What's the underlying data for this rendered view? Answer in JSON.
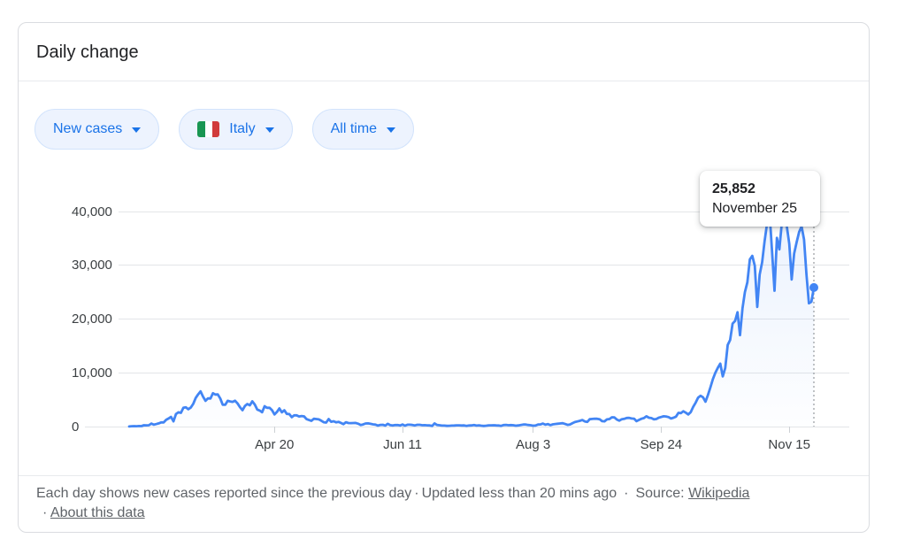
{
  "card": {
    "title": "Daily change"
  },
  "filters": {
    "metric": {
      "label": "New cases",
      "icon": "chevron-down"
    },
    "region": {
      "label": "Italy",
      "flag": "italy",
      "icon": "chevron-down"
    },
    "range": {
      "label": "All time",
      "icon": "chevron-down"
    }
  },
  "tooltip": {
    "value": "25,852",
    "date": "November 25"
  },
  "footer": {
    "description": "Each day shows new cases reported since the previous day",
    "dot": "·",
    "updated": "Updated less than 20 mins ago",
    "source_label": "Source:",
    "source_link": "Wikipedia",
    "about_link": "About this data"
  },
  "colors": {
    "line": "#4285f4",
    "accent": "#1a73e8",
    "chip_bg": "#edf3fe",
    "chip_border": "#d2e3fc",
    "grid": "#e3e5e8",
    "text_primary": "#202124",
    "text_secondary": "#5f6368"
  },
  "chart_data": {
    "type": "line",
    "title": "Daily change",
    "series_name": "New cases",
    "region": "Italy",
    "time_range": "All time",
    "start_date": "2020-02-21",
    "end_date": "2020-11-25",
    "grid": true,
    "ylim": [
      0,
      40000
    ],
    "y_ticks": [
      {
        "label": "0",
        "value": 0
      },
      {
        "label": "10,000",
        "value": 10000
      },
      {
        "label": "20,000",
        "value": 20000
      },
      {
        "label": "30,000",
        "value": 30000
      },
      {
        "label": "40,000",
        "value": 40000
      }
    ],
    "x_ticks": [
      {
        "label": "Apr 20",
        "day_index": 59
      },
      {
        "label": "Jun 11",
        "day_index": 111
      },
      {
        "label": "Aug 3",
        "day_index": 164
      },
      {
        "label": "Sep 24",
        "day_index": 216
      },
      {
        "label": "Nov 15",
        "day_index": 268
      }
    ],
    "highlight": {
      "value": 25852,
      "formatted": "25,852",
      "date": "November 25",
      "day_index": 278
    },
    "values": [
      20,
      60,
      78,
      72,
      93,
      78,
      250,
      238,
      240,
      561,
      347,
      466,
      587,
      769,
      778,
      1247,
      1492,
      1797,
      977,
      2313,
      2651,
      2547,
      3497,
      3590,
      3233,
      3526,
      4207,
      5322,
      5986,
      6557,
      5560,
      4789,
      5249,
      5210,
      6203,
      5959,
      5974,
      5217,
      4050,
      4053,
      4782,
      4668,
      4585,
      4805,
      4316,
      3599,
      3039,
      3836,
      4204,
      3951,
      4694,
      4092,
      3153,
      2972,
      2667,
      3786,
      3493,
      3491,
      3047,
      2256,
      2729,
      3370,
      2646,
      3021,
      2357,
      2324,
      1739,
      2091,
      2086,
      1872,
      1965,
      1900,
      1389,
      1221,
      1075,
      1444,
      1401,
      1327,
      1083,
      802,
      744,
      1402,
      888,
      992,
      789,
      875,
      675,
      451,
      813,
      665,
      642,
      652,
      669,
      531,
      300,
      397,
      584,
      593,
      516,
      416,
      355,
      178,
      318,
      321,
      177,
      518,
      270,
      197,
      280,
      283,
      202,
      379,
      163,
      346,
      338,
      301,
      210,
      329,
      331,
      251,
      262,
      224,
      218,
      113,
      577,
      296,
      255,
      175,
      174,
      126,
      142,
      187,
      201,
      223,
      235,
      192,
      208,
      137,
      193,
      214,
      276,
      188,
      234,
      169,
      114,
      162,
      230,
      233,
      249,
      219,
      190,
      128,
      282,
      306,
      252,
      275,
      255,
      168,
      212,
      289,
      386,
      379,
      295,
      239,
      159,
      190,
      384,
      402,
      552,
      347,
      463,
      259,
      412,
      481,
      523,
      574,
      629,
      479,
      320,
      403,
      642,
      840,
      947,
      1071,
      1210,
      953,
      878,
      1367,
      1411,
      1462,
      1444,
      1365,
      996,
      978,
      1326,
      1397,
      1733,
      1694,
      1297,
      1108,
      1370,
      1434,
      1597,
      1616,
      1501,
      1458,
      1008,
      1229,
      1452,
      1585,
      1907,
      1638,
      1587,
      1350,
      1392,
      1640,
      1786,
      1912,
      1869,
      1766,
      1494,
      1648,
      1851,
      2548,
      2499,
      2844,
      2578,
      2257,
      2677,
      3678,
      4458,
      5372,
      5724,
      5456,
      4619,
      5901,
      7332,
      8804,
      10010,
      10925,
      11705,
      9338,
      10874,
      15199,
      16079,
      19143,
      19644,
      21273,
      17012,
      21994,
      24991,
      26831,
      31084,
      31758,
      29907,
      22253,
      28244,
      30550,
      34505,
      37809,
      39811,
      32616,
      25271,
      35098,
      32961,
      37978,
      40902,
      37255,
      33979,
      27354,
      32191,
      34283,
      36176,
      37242,
      34767,
      28337,
      22930,
      23232,
      25852
    ]
  }
}
